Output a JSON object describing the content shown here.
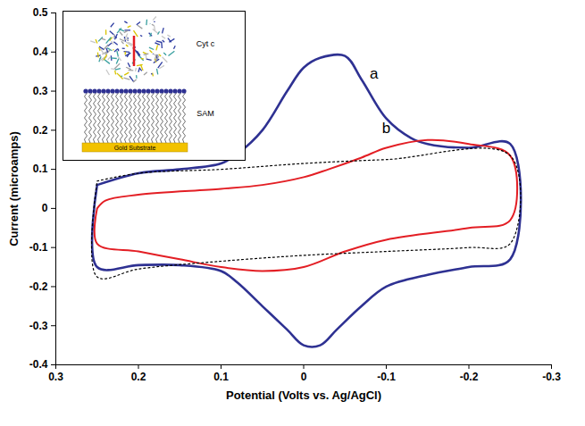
{
  "chart_data": {
    "type": "line",
    "x_label": "Potential (Volts vs. Ag/AgCl)",
    "y_label": "Current (microamps)",
    "xlim": [
      0.3,
      -0.3
    ],
    "xticks": [
      0.3,
      0.2,
      0.1,
      0,
      -0.1,
      -0.2,
      -0.3
    ],
    "ylim": [
      -0.4,
      0.5
    ],
    "yticks": [
      -0.4,
      -0.3,
      -0.2,
      -0.1,
      0,
      0.1,
      0.2,
      0.3,
      0.4,
      0.5
    ],
    "grid": false,
    "series": [
      {
        "color": "#2E3192",
        "line_style": "solid",
        "marker": "none",
        "x": [
          0.25,
          0.2,
          0.15,
          0.1,
          0.08,
          0.05,
          0.02,
          0.0,
          -0.02,
          -0.05,
          -0.07,
          -0.1,
          -0.13,
          -0.15,
          -0.2,
          -0.25,
          -0.25,
          -0.2,
          -0.15,
          -0.1,
          -0.07,
          -0.04,
          -0.02,
          0.0,
          0.02,
          0.05,
          0.08,
          0.1,
          0.15,
          0.2,
          0.25,
          0.25
        ],
        "values": [
          0.06,
          0.09,
          0.1,
          0.115,
          0.14,
          0.2,
          0.3,
          0.36,
          0.385,
          0.39,
          0.33,
          0.23,
          0.18,
          0.165,
          0.155,
          0.165,
          -0.13,
          -0.15,
          -0.17,
          -0.2,
          -0.25,
          -0.31,
          -0.35,
          -0.35,
          -0.31,
          -0.25,
          -0.19,
          -0.16,
          -0.145,
          -0.145,
          -0.15,
          0.06
        ]
      },
      {
        "color": "#E31E24",
        "line_style": "solid",
        "marker": "none",
        "x": [
          0.25,
          0.24,
          0.2,
          0.1,
          0.05,
          0.0,
          -0.03,
          -0.07,
          -0.1,
          -0.15,
          -0.2,
          -0.25,
          -0.25,
          -0.2,
          -0.1,
          -0.05,
          0.0,
          0.05,
          0.1,
          0.15,
          0.2,
          0.25,
          0.25
        ],
        "values": [
          0.0,
          0.02,
          0.035,
          0.05,
          0.06,
          0.08,
          0.1,
          0.13,
          0.155,
          0.175,
          0.165,
          0.135,
          -0.03,
          -0.05,
          -0.08,
          -0.11,
          -0.15,
          -0.16,
          -0.15,
          -0.13,
          -0.11,
          -0.09,
          0.0
        ]
      },
      {
        "color": "#000000",
        "line_style": "dotted",
        "marker": "none",
        "x": [
          0.25,
          0.2,
          0.1,
          0.0,
          -0.1,
          -0.25,
          -0.25,
          -0.2,
          -0.1,
          0.0,
          0.1,
          0.2,
          0.25,
          0.25
        ],
        "values": [
          0.07,
          0.09,
          0.1,
          0.115,
          0.125,
          0.135,
          -0.09,
          -0.1,
          -0.11,
          -0.12,
          -0.135,
          -0.155,
          -0.175,
          0.07
        ]
      }
    ],
    "annotations": [
      {
        "text": "a",
        "x": -0.085,
        "y": 0.345
      },
      {
        "text": "b",
        "x": -0.1,
        "y": 0.205
      }
    ],
    "inset": {
      "protein_label": "Cyt c",
      "monolayer_label": "SAM",
      "substrate_label": "Gold Substrate"
    }
  }
}
